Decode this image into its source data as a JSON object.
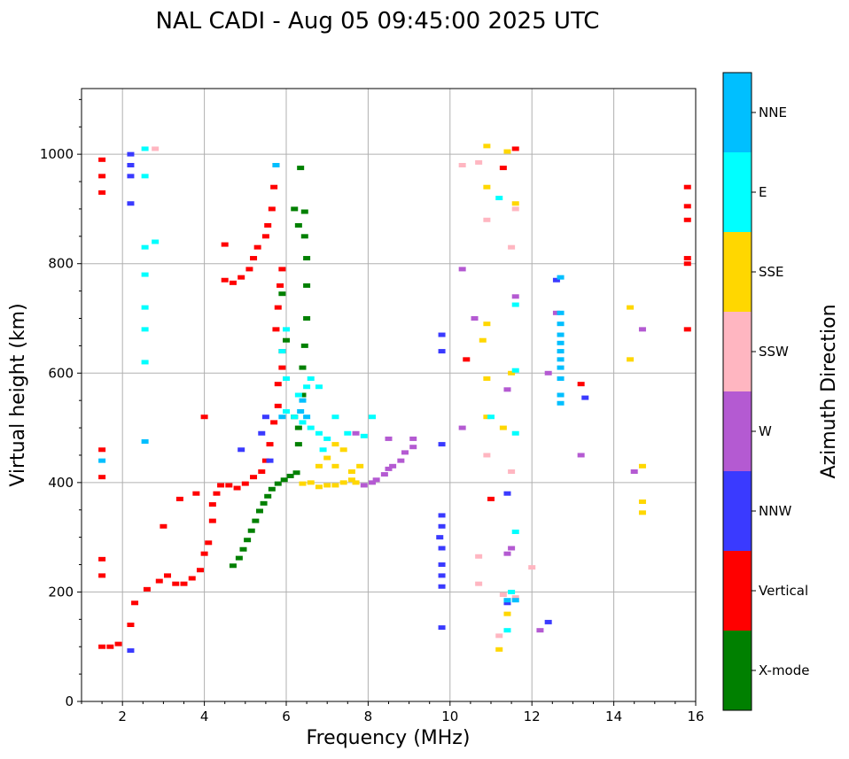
{
  "chart_data": {
    "type": "scatter",
    "title": "NAL CADI - Aug 05 09:45:00 2025 UTC",
    "xlabel": "Frequency (MHz)",
    "ylabel": "Virtual height (km)",
    "xlim": [
      1,
      16
    ],
    "ylim": [
      0,
      1120
    ],
    "xticks": [
      2,
      4,
      6,
      8,
      10,
      12,
      14,
      16
    ],
    "yticks": [
      0,
      200,
      400,
      600,
      800,
      1000
    ],
    "grid": true,
    "colorbar": {
      "label": "Azimuth Direction",
      "categories": [
        {
          "name": "X-mode",
          "color": "#008000"
        },
        {
          "name": "Vertical",
          "color": "#ff0000"
        },
        {
          "name": "NNW",
          "color": "#3a3aff"
        },
        {
          "name": "W",
          "color": "#b45ad2"
        },
        {
          "name": "SSW",
          "color": "#ffb6c1"
        },
        {
          "name": "SSE",
          "color": "#ffd700"
        },
        {
          "name": "E",
          "color": "#00ffff"
        },
        {
          "name": "NNE",
          "color": "#00bfff"
        }
      ]
    },
    "series": [
      {
        "name": "X-mode",
        "points": [
          [
            4.7,
            248
          ],
          [
            4.85,
            262
          ],
          [
            4.95,
            278
          ],
          [
            5.05,
            295
          ],
          [
            5.15,
            312
          ],
          [
            5.25,
            330
          ],
          [
            5.35,
            348
          ],
          [
            5.45,
            362
          ],
          [
            5.55,
            375
          ],
          [
            5.65,
            388
          ],
          [
            5.8,
            398
          ],
          [
            5.95,
            405
          ],
          [
            6.1,
            412
          ],
          [
            6.25,
            418
          ],
          [
            6.3,
            470
          ],
          [
            6.3,
            500
          ],
          [
            6.4,
            560
          ],
          [
            6.4,
            610
          ],
          [
            6.45,
            650
          ],
          [
            6.5,
            700
          ],
          [
            6.5,
            760
          ],
          [
            6.5,
            810
          ],
          [
            6.45,
            850
          ],
          [
            6.45,
            895
          ],
          [
            6.35,
            975
          ],
          [
            6.2,
            900
          ],
          [
            6.3,
            870
          ],
          [
            5.9,
            745
          ],
          [
            6.0,
            660
          ],
          [
            6.2,
            520
          ]
        ]
      },
      {
        "name": "Vertical",
        "points": [
          [
            1.5,
            100
          ],
          [
            1.5,
            230
          ],
          [
            1.5,
            260
          ],
          [
            1.5,
            410
          ],
          [
            1.5,
            460
          ],
          [
            1.5,
            930
          ],
          [
            1.5,
            960
          ],
          [
            1.5,
            990
          ],
          [
            1.7,
            100
          ],
          [
            1.9,
            105
          ],
          [
            2.2,
            140
          ],
          [
            2.3,
            180
          ],
          [
            2.6,
            205
          ],
          [
            2.9,
            220
          ],
          [
            3.1,
            230
          ],
          [
            3.3,
            215
          ],
          [
            3.5,
            215
          ],
          [
            3.7,
            225
          ],
          [
            3.9,
            240
          ],
          [
            4.0,
            270
          ],
          [
            4.1,
            290
          ],
          [
            4.2,
            330
          ],
          [
            4.2,
            360
          ],
          [
            4.3,
            380
          ],
          [
            4.4,
            395
          ],
          [
            4.6,
            395
          ],
          [
            4.8,
            390
          ],
          [
            5.0,
            398
          ],
          [
            5.2,
            410
          ],
          [
            5.4,
            420
          ],
          [
            5.5,
            440
          ],
          [
            5.6,
            470
          ],
          [
            5.7,
            510
          ],
          [
            5.8,
            540
          ],
          [
            5.8,
            580
          ],
          [
            5.9,
            610
          ],
          [
            5.9,
            640
          ],
          [
            5.75,
            680
          ],
          [
            5.8,
            720
          ],
          [
            5.85,
            760
          ],
          [
            5.9,
            790
          ],
          [
            4.5,
            770
          ],
          [
            4.7,
            765
          ],
          [
            4.9,
            775
          ],
          [
            5.1,
            790
          ],
          [
            5.2,
            810
          ],
          [
            5.3,
            830
          ],
          [
            5.5,
            850
          ],
          [
            5.55,
            870
          ],
          [
            5.65,
            900
          ],
          [
            5.7,
            940
          ],
          [
            5.75,
            980
          ],
          [
            4.5,
            835
          ],
          [
            4.0,
            520
          ],
          [
            3.0,
            320
          ],
          [
            3.4,
            370
          ],
          [
            3.8,
            380
          ],
          [
            10.4,
            625
          ],
          [
            11.0,
            370
          ],
          [
            11.3,
            975
          ],
          [
            11.6,
            1010
          ],
          [
            13.2,
            580
          ],
          [
            15.8,
            940
          ],
          [
            15.8,
            905
          ],
          [
            15.8,
            880
          ],
          [
            15.8,
            810
          ],
          [
            15.8,
            800
          ],
          [
            15.8,
            680
          ]
        ]
      },
      {
        "name": "NNW",
        "points": [
          [
            2.2,
            1000
          ],
          [
            2.2,
            980
          ],
          [
            2.2,
            960
          ],
          [
            2.2,
            910
          ],
          [
            2.2,
            93
          ],
          [
            4.9,
            460
          ],
          [
            5.4,
            490
          ],
          [
            5.5,
            520
          ],
          [
            5.6,
            440
          ],
          [
            9.8,
            340
          ],
          [
            9.8,
            320
          ],
          [
            9.75,
            300
          ],
          [
            9.8,
            280
          ],
          [
            9.8,
            250
          ],
          [
            9.8,
            230
          ],
          [
            9.8,
            210
          ],
          [
            9.8,
            640
          ],
          [
            9.8,
            670
          ],
          [
            9.8,
            470
          ],
          [
            9.8,
            135
          ],
          [
            11.4,
            380
          ],
          [
            11.4,
            180
          ],
          [
            12.4,
            145
          ],
          [
            12.6,
            770
          ],
          [
            13.3,
            555
          ]
        ]
      },
      {
        "name": "W",
        "points": [
          [
            7.9,
            395
          ],
          [
            8.1,
            400
          ],
          [
            8.2,
            405
          ],
          [
            8.4,
            415
          ],
          [
            8.5,
            425
          ],
          [
            8.6,
            430
          ],
          [
            8.8,
            440
          ],
          [
            8.9,
            455
          ],
          [
            9.1,
            465
          ],
          [
            9.1,
            480
          ],
          [
            8.5,
            480
          ],
          [
            7.7,
            490
          ],
          [
            10.3,
            500
          ],
          [
            10.6,
            700
          ],
          [
            11.4,
            270
          ],
          [
            11.5,
            280
          ],
          [
            11.4,
            570
          ],
          [
            11.6,
            740
          ],
          [
            12.4,
            600
          ],
          [
            12.6,
            710
          ],
          [
            13.2,
            450
          ],
          [
            14.7,
            680
          ],
          [
            14.5,
            420
          ],
          [
            12.2,
            130
          ],
          [
            10.3,
            790
          ]
        ]
      },
      {
        "name": "SSW",
        "points": [
          [
            10.7,
            985
          ],
          [
            10.3,
            980
          ],
          [
            10.9,
            880
          ],
          [
            10.9,
            450
          ],
          [
            11.2,
            120
          ],
          [
            11.6,
            900
          ],
          [
            11.5,
            830
          ],
          [
            10.7,
            265
          ],
          [
            10.7,
            215
          ],
          [
            11.6,
            190
          ],
          [
            11.3,
            195
          ],
          [
            12.0,
            245
          ],
          [
            2.8,
            1010
          ],
          [
            11.5,
            420
          ]
        ]
      },
      {
        "name": "SSE",
        "points": [
          [
            6.4,
            398
          ],
          [
            6.6,
            400
          ],
          [
            6.8,
            392
          ],
          [
            7.0,
            395
          ],
          [
            7.2,
            395
          ],
          [
            7.4,
            400
          ],
          [
            7.6,
            405
          ],
          [
            7.6,
            420
          ],
          [
            7.2,
            430
          ],
          [
            7.0,
            445
          ],
          [
            7.4,
            460
          ],
          [
            7.7,
            400
          ],
          [
            7.2,
            470
          ],
          [
            6.8,
            430
          ],
          [
            7.8,
            430
          ],
          [
            10.9,
            1015
          ],
          [
            10.9,
            940
          ],
          [
            10.9,
            690
          ],
          [
            10.9,
            590
          ],
          [
            10.9,
            520
          ],
          [
            10.8,
            660
          ],
          [
            11.3,
            500
          ],
          [
            11.4,
            160
          ],
          [
            11.2,
            95
          ],
          [
            11.6,
            910
          ],
          [
            11.5,
            600
          ],
          [
            14.4,
            720
          ],
          [
            14.4,
            625
          ],
          [
            14.7,
            430
          ],
          [
            14.7,
            365
          ],
          [
            14.7,
            345
          ],
          [
            11.4,
            1005
          ]
        ]
      },
      {
        "name": "E",
        "points": [
          [
            2.55,
            1010
          ],
          [
            2.55,
            960
          ],
          [
            2.55,
            830
          ],
          [
            2.55,
            780
          ],
          [
            2.55,
            720
          ],
          [
            2.55,
            680
          ],
          [
            2.55,
            620
          ],
          [
            2.8,
            840
          ],
          [
            6.0,
            530
          ],
          [
            6.2,
            520
          ],
          [
            6.4,
            510
          ],
          [
            6.6,
            500
          ],
          [
            6.8,
            490
          ],
          [
            7.0,
            480
          ],
          [
            6.3,
            560
          ],
          [
            6.5,
            575
          ],
          [
            6.6,
            590
          ],
          [
            6.8,
            575
          ],
          [
            7.2,
            520
          ],
          [
            7.5,
            490
          ],
          [
            7.9,
            485
          ],
          [
            8.1,
            520
          ],
          [
            6.0,
            590
          ],
          [
            5.9,
            640
          ],
          [
            6.0,
            680
          ],
          [
            6.9,
            460
          ],
          [
            11.2,
            920
          ],
          [
            11.6,
            725
          ],
          [
            11.6,
            605
          ],
          [
            11.6,
            490
          ],
          [
            11.6,
            310
          ],
          [
            11.4,
            130
          ],
          [
            11.5,
            200
          ],
          [
            11.0,
            520
          ]
        ]
      },
      {
        "name": "NNE",
        "points": [
          [
            1.5,
            440
          ],
          [
            2.55,
            475
          ],
          [
            5.75,
            980
          ],
          [
            6.35,
            530
          ],
          [
            6.4,
            550
          ],
          [
            6.5,
            520
          ],
          [
            5.9,
            520
          ],
          [
            12.7,
            775
          ],
          [
            12.7,
            710
          ],
          [
            12.7,
            690
          ],
          [
            12.7,
            670
          ],
          [
            12.7,
            655
          ],
          [
            12.7,
            640
          ],
          [
            12.7,
            625
          ],
          [
            12.7,
            610
          ],
          [
            12.7,
            590
          ],
          [
            12.7,
            560
          ],
          [
            12.7,
            545
          ],
          [
            11.6,
            185
          ],
          [
            11.4,
            185
          ]
        ]
      }
    ]
  }
}
